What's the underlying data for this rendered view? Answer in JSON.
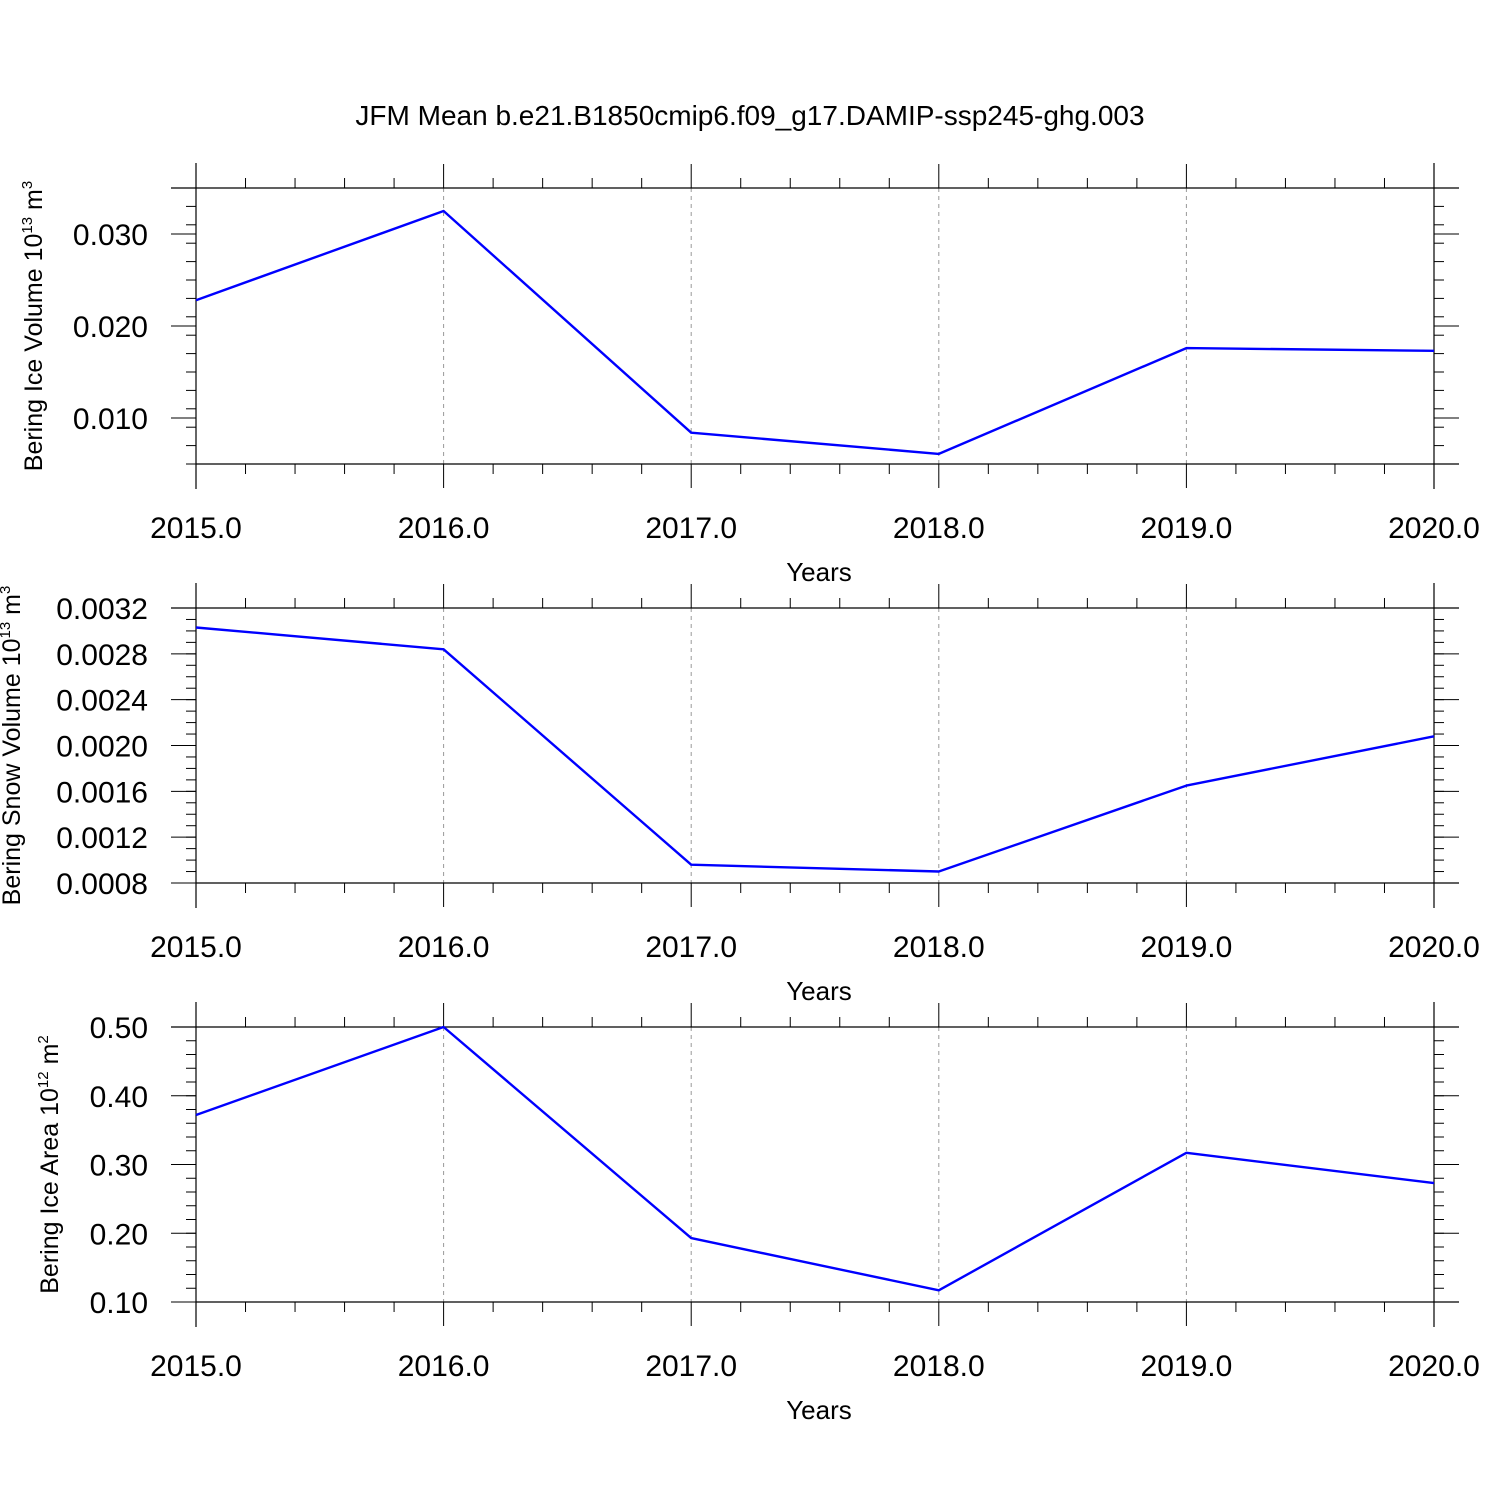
{
  "figure_title": "JFM Mean b.e21.B1850cmip6.f09_g17.DAMIP-ssp245-ghg.003",
  "chart_data": [
    {
      "type": "line",
      "ylabel": {
        "text": "Bering Ice Volume 10",
        "sup": "13",
        "unit": " m",
        "unit_sup": "3"
      },
      "xlabel": "Years",
      "x": [
        2015,
        2016,
        2017,
        2018,
        2019,
        2020
      ],
      "xticks": [
        "2015.0",
        "2016.0",
        "2017.0",
        "2018.0",
        "2019.0",
        "2020.0"
      ],
      "series": [
        {
          "values": [
            0.0228,
            0.0325,
            0.0084,
            0.0061,
            0.0176,
            0.0173
          ],
          "color": "#0000ff"
        }
      ],
      "xlim": [
        2015,
        2020
      ],
      "ylim": [
        0.005,
        0.035
      ],
      "yticks": [
        0.01,
        0.02,
        0.03
      ],
      "ytick_labels": [
        "0.010",
        "0.020",
        "0.030"
      ],
      "y_minor_step": 0.002,
      "grid": "vertical dashed at major x ticks"
    },
    {
      "type": "line",
      "ylabel": {
        "text": "Bering Snow Volume 10",
        "sup": "13",
        "unit": " m",
        "unit_sup": "3"
      },
      "xlabel": "Years",
      "x": [
        2015,
        2016,
        2017,
        2018,
        2019,
        2020
      ],
      "xticks": [
        "2015.0",
        "2016.0",
        "2017.0",
        "2018.0",
        "2019.0",
        "2020.0"
      ],
      "series": [
        {
          "values": [
            0.00303,
            0.00284,
            0.00096,
            0.0009,
            0.00165,
            0.00208
          ],
          "color": "#0000ff"
        }
      ],
      "xlim": [
        2015,
        2020
      ],
      "ylim": [
        0.0008,
        0.0032
      ],
      "yticks": [
        0.0008,
        0.0012,
        0.0016,
        0.002,
        0.0024,
        0.0028,
        0.0032
      ],
      "ytick_labels": [
        "0.0008",
        "0.0012",
        "0.0016",
        "0.0020",
        "0.0024",
        "0.0028",
        "0.0032"
      ],
      "y_minor_step": 0.0001,
      "grid": "vertical dashed at major x ticks"
    },
    {
      "type": "line",
      "ylabel": {
        "text": "Bering Ice Area 10",
        "sup": "12",
        "unit": " m",
        "unit_sup": "2"
      },
      "xlabel": "Years",
      "x": [
        2015,
        2016,
        2017,
        2018,
        2019,
        2020
      ],
      "xticks": [
        "2015.0",
        "2016.0",
        "2017.0",
        "2018.0",
        "2019.0",
        "2020.0"
      ],
      "series": [
        {
          "values": [
            0.372,
            0.5,
            0.193,
            0.117,
            0.317,
            0.273
          ],
          "color": "#0000ff"
        }
      ],
      "xlim": [
        2015,
        2020
      ],
      "ylim": [
        0.1,
        0.5
      ],
      "yticks": [
        0.1,
        0.2,
        0.3,
        0.4,
        0.5
      ],
      "ytick_labels": [
        "0.10",
        "0.20",
        "0.30",
        "0.40",
        "0.50"
      ],
      "y_minor_step": 0.02,
      "grid": "vertical dashed at major x ticks"
    }
  ]
}
